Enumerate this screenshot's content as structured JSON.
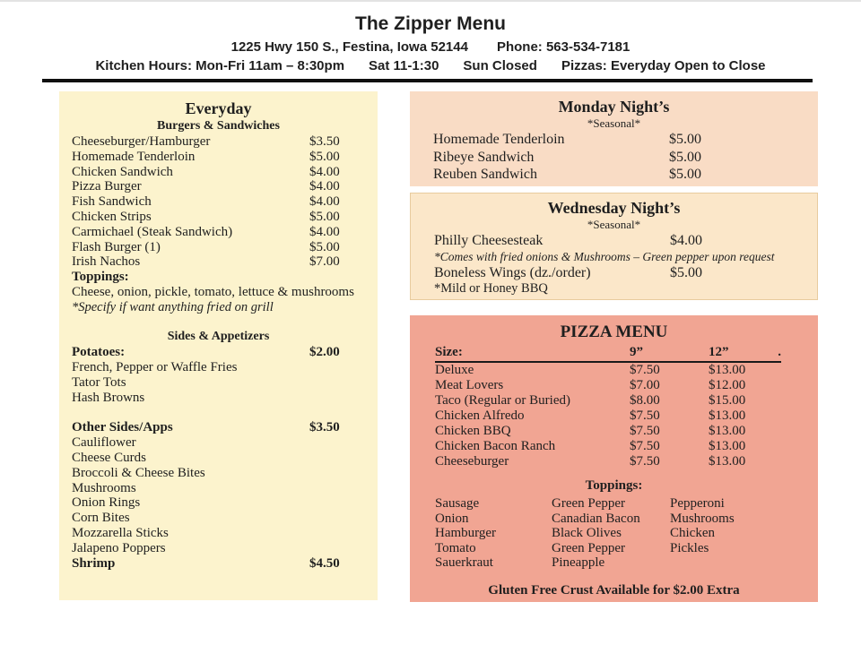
{
  "header": {
    "title": "The Zipper Menu",
    "address": "1225 Hwy 150 S., Festina, Iowa 52144",
    "phone": "Phone: 563-534-7181",
    "hours": [
      "Kitchen Hours: Mon-Fri 11am – 8:30pm",
      "Sat 11-1:30",
      "Sun Closed",
      "Pizzas: Everyday Open to Close"
    ]
  },
  "everyday": {
    "title": "Everyday",
    "subtitle": "Burgers & Sandwiches",
    "items": [
      {
        "name": "Cheeseburger/Hamburger",
        "price": "$3.50"
      },
      {
        "name": "Homemade Tenderloin",
        "price": "$5.00"
      },
      {
        "name": "Chicken Sandwich",
        "price": "$4.00"
      },
      {
        "name": "Pizza Burger",
        "price": "$4.00"
      },
      {
        "name": "Fish Sandwich",
        "price": "$4.00"
      },
      {
        "name": "Chicken Strips",
        "price": "$5.00"
      },
      {
        "name": "Carmichael (Steak Sandwich)",
        "price": "$4.00"
      },
      {
        "name": "Flash Burger (1)",
        "price": "$5.00"
      },
      {
        "name": "Irish Nachos",
        "price": "$7.00"
      }
    ],
    "toppings_label": "Toppings:",
    "toppings_text": "Cheese, onion, pickle, tomato, lettuce & mushrooms",
    "grill_note": "*Specify if want anything fried on grill",
    "sides_title": "Sides & Appetizers",
    "groups": [
      {
        "label": "Potatoes:",
        "price": "$2.00",
        "items": [
          "French, Pepper or Waffle Fries",
          "Tator Tots",
          "Hash Browns"
        ]
      },
      {
        "label": "Other Sides/Apps",
        "price": "$3.50",
        "items": [
          "Cauliflower",
          "Cheese Curds",
          "Broccoli & Cheese Bites",
          "Mushrooms",
          "Onion Rings",
          "Corn Bites",
          "Mozzarella Sticks",
          "Jalapeno Poppers"
        ]
      },
      {
        "label": "Shrimp",
        "price": "$4.50",
        "items": []
      }
    ]
  },
  "monday": {
    "title": "Monday Night’s",
    "seasonal": "*Seasonal*",
    "items": [
      {
        "name": "Homemade Tenderloin",
        "price": "$5.00"
      },
      {
        "name": "Ribeye Sandwich",
        "price": "$5.00"
      },
      {
        "name": "Reuben Sandwich",
        "price": "$5.00"
      }
    ]
  },
  "wednesday": {
    "title": "Wednesday Night’s",
    "seasonal": "*Seasonal*",
    "items": [
      {
        "name": "Philly Cheesesteak",
        "price": "$4.00",
        "note": "*Comes with fried onions & Mushrooms – Green pepper upon request"
      },
      {
        "name": "Boneless Wings (dz./order)",
        "price": "$5.00",
        "note": "*Mild or Honey BBQ"
      }
    ]
  },
  "pizza": {
    "title": "PIZZA MENU",
    "size_label": "Size:",
    "size_9": "9”",
    "size_12": "12”",
    "size_dot": ".",
    "items": [
      {
        "name": "Deluxe",
        "p9": "$7.50",
        "p12": "$13.00"
      },
      {
        "name": "Meat Lovers",
        "p9": "$7.00",
        "p12": "$12.00"
      },
      {
        "name": "Taco (Regular or Buried)",
        "p9": "$8.00",
        "p12": "$15.00"
      },
      {
        "name": "Chicken Alfredo",
        "p9": "$7.50",
        "p12": "$13.00"
      },
      {
        "name": "Chicken BBQ",
        "p9": "$7.50",
        "p12": "$13.00"
      },
      {
        "name": "Chicken Bacon Ranch",
        "p9": "$7.50",
        "p12": "$13.00"
      },
      {
        "name": "Cheeseburger",
        "p9": "$7.50",
        "p12": "$13.00"
      }
    ],
    "toppings_label": "Toppings:",
    "toppings_columns": [
      [
        "Sausage",
        "Onion",
        "Hamburger",
        "Tomato",
        "Sauerkraut"
      ],
      [
        "Green Pepper",
        "Canadian Bacon",
        "Black Olives",
        "Green Pepper",
        "Pineapple"
      ],
      [
        "Pepperoni",
        "Mushrooms",
        "Chicken",
        "Pickles"
      ]
    ],
    "gluten_note": "Gluten Free Crust Available for $2.00 Extra"
  },
  "colors": {
    "everyday_bg": "#fcf3cd",
    "monday_bg": "#f9dcc5",
    "wednesday_bg": "#fbe7c9",
    "wednesday_border": "#e8cb9e",
    "pizza_bg": "#f1a593",
    "rule": "#101010",
    "text": "#1f1f1f"
  }
}
